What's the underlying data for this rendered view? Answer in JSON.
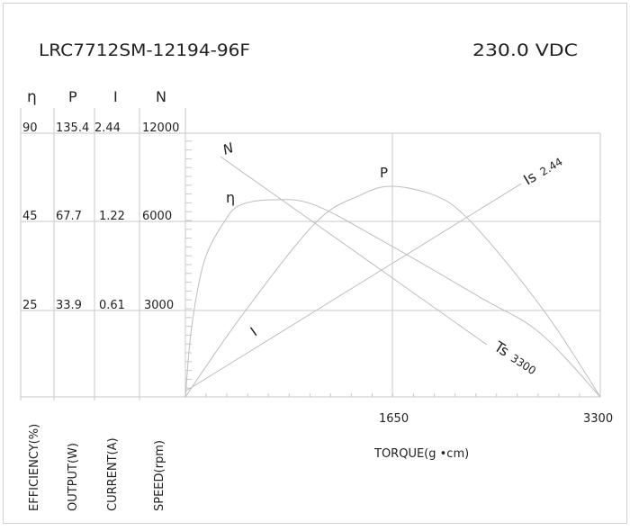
{
  "header": {
    "model": "LRC7712SM-12194-96F",
    "voltage": "230.0 VDC"
  },
  "chart_data": {
    "type": "line",
    "xlabel": "TORQUE(g •cm)",
    "x_ticks": [
      "1650",
      "3300"
    ],
    "xlim": [
      0,
      3300
    ],
    "axes": [
      {
        "symbol": "η",
        "label": "EFFICIENCY(%)",
        "ticks": [
          "90",
          "45",
          "25"
        ],
        "levels": [
          0,
          25,
          45,
          90
        ]
      },
      {
        "symbol": "P",
        "label": "OUTPUT(W)",
        "ticks": [
          "135.4",
          "67.7",
          "33.9"
        ],
        "levels": [
          0,
          33.9,
          67.7,
          135.4
        ]
      },
      {
        "symbol": "I",
        "label": "CURRENT(A)",
        "ticks": [
          "2.44",
          "1.22",
          "0.61"
        ],
        "levels": [
          0,
          0.61,
          1.22,
          2.44
        ]
      },
      {
        "symbol": "N",
        "label": "SPEED(rpm)",
        "ticks": [
          "12000",
          "6000",
          "3000"
        ],
        "levels": [
          0,
          3000,
          6000,
          12000
        ]
      }
    ],
    "series": [
      {
        "name": "N",
        "axis": 3,
        "x": [
          279,
          2398
        ],
        "y": [
          10408,
          1812
        ],
        "end_label": "Ts",
        "end_value": "3300"
      },
      {
        "name": "I",
        "axis": 2,
        "x": [
          0,
          2670
        ],
        "y": [
          0.04,
          1.74
        ],
        "end_label": "Is",
        "end_value": "2.44"
      },
      {
        "name": "η",
        "axis": 0,
        "x": [
          0,
          50,
          150,
          315,
          437,
          694,
          1031,
          1625,
          2341,
          2820,
          3300
        ],
        "y": [
          0,
          20.3,
          36.1,
          45.4,
          53.3,
          56.0,
          53.3,
          39.7,
          28.0,
          18.5,
          0
        ]
      },
      {
        "name": "P",
        "axis": 1,
        "x": [
          0,
          437,
          1031,
          1389,
          1639,
          1983,
          2226,
          2584,
          2942,
          3300
        ],
        "y": [
          0,
          31.1,
          67.0,
          87.7,
          94.6,
          87.7,
          71.8,
          50.3,
          27.5,
          0
        ]
      }
    ],
    "grid": true,
    "line_color": "#bdbdbd"
  }
}
